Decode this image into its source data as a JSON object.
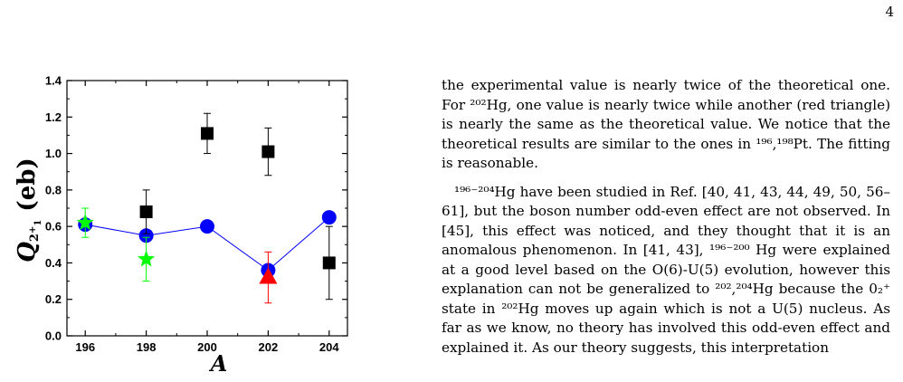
{
  "page": {
    "number": "4"
  },
  "chart_data": {
    "type": "scatter",
    "xlabel": "A",
    "ylabel": "Q2+1 (eb)",
    "xlim": [
      195.4,
      204.6
    ],
    "ylim": [
      0.0,
      1.4
    ],
    "x_ticks": [
      "196",
      "198",
      "200",
      "202",
      "204"
    ],
    "y_ticks": [
      "0.0",
      "0.2",
      "0.4",
      "0.6",
      "0.8",
      "1.0",
      "1.2",
      "1.4"
    ],
    "grid": false,
    "series": [
      {
        "marker": "circle",
        "color": "#0000ff",
        "line": true,
        "points": [
          [
            196,
            0.61
          ],
          [
            198,
            0.55
          ],
          [
            200,
            0.6
          ],
          [
            202,
            0.36
          ],
          [
            204,
            0.65
          ]
        ]
      },
      {
        "marker": "square",
        "color": "#000000",
        "line": false,
        "points": [
          {
            "x": 198,
            "y": 0.68,
            "err": 0.12
          },
          {
            "x": 200,
            "y": 1.11,
            "err": 0.11
          },
          {
            "x": 202,
            "y": 1.01,
            "err": 0.13
          },
          {
            "x": 204,
            "y": 0.4,
            "err": 0.2
          }
        ]
      },
      {
        "marker": "star",
        "color": "#00ff00",
        "line": false,
        "points": [
          {
            "x": 196,
            "y": 0.62,
            "err": 0.08
          },
          {
            "x": 198,
            "y": 0.42,
            "err": 0.12
          }
        ]
      },
      {
        "marker": "triangle",
        "color": "#ff0000",
        "line": false,
        "points": [
          {
            "x": 202,
            "y": 0.32,
            "err": 0.14
          }
        ]
      }
    ]
  },
  "text": {
    "para1": "the experimental value is nearly twice of the theoretical one. For ²⁰²Hg, one value is nearly twice while another (red triangle) is nearly the same as the theoretical value. We notice that the theoretical results are similar to the ones in ¹⁹⁶,¹⁹⁸Pt. The fitting is reasonable.",
    "para2": "¹⁹⁶⁻²⁰⁴Hg have been studied in Ref. [40, 41, 43, 44, 49, 50, 56–61], but the boson number odd-even effect are not observed. In [45], this effect was noticed, and they thought that it is an anomalous phenomenon. In [41, 43], ¹⁹⁶⁻²⁰⁰ Hg were explained at a good level based on the O(6)-U(5) evolution, however this explanation can not be generalized to ²⁰²,²⁰⁴Hg because the 0₂⁺ state in ²⁰²Hg moves up again which is not a U(5) nucleus. As far as we know, no theory has involved this odd-even effect and explained it. As our theory suggests, this interpretation"
  }
}
